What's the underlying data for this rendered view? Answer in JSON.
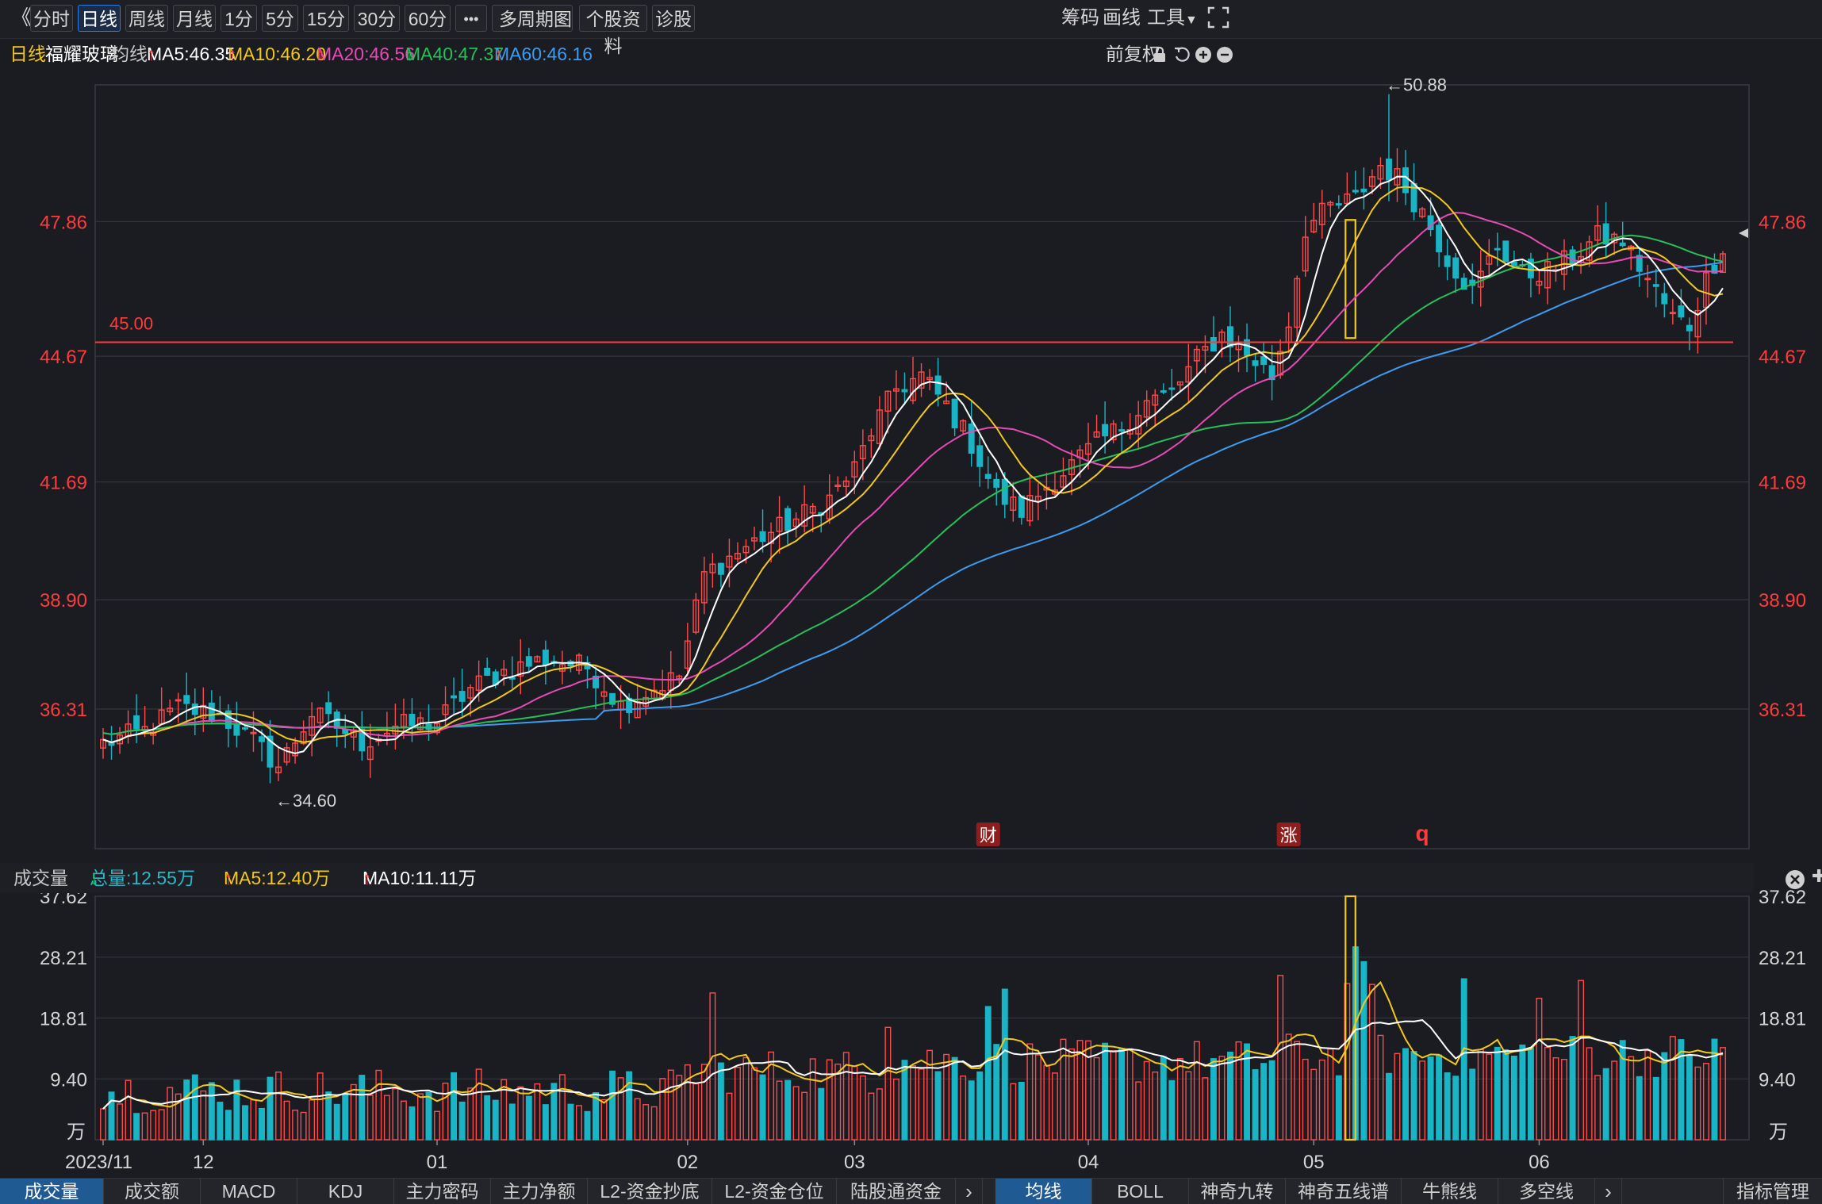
{
  "toolbar": {
    "back_glyph": "《",
    "periods": [
      "分时",
      "日线",
      "周线",
      "月线",
      "1分",
      "5分",
      "15分",
      "30分",
      "60分"
    ],
    "active_period": "日线",
    "more_label": "•••",
    "multi_period_label": "多周期图",
    "stock_info_label": "个股资料",
    "diagnose_label": "诊股",
    "chips_label": "筹码",
    "draw_label": "画线",
    "tools_label": "工具"
  },
  "ma_bar": {
    "period_label": "日线",
    "stock_name": "福耀玻璃",
    "ma_title": "均线",
    "items": [
      {
        "label": "MA5:46.35",
        "dir": "up",
        "color": "#ffffff"
      },
      {
        "label": "MA10:46.20",
        "dir": "up",
        "color": "#f2c81a"
      },
      {
        "label": "MA20:46.56",
        "dir": "up",
        "color": "#e64bb4"
      },
      {
        "label": "MA40:47.37",
        "dir": "down",
        "color": "#27c05a"
      },
      {
        "label": "MA60:46.16",
        "dir": "up",
        "color": "#3b9cf2"
      }
    ],
    "adjust_label": "前复权"
  },
  "volume_bar": {
    "title": "成交量",
    "items": [
      {
        "label": "总量:12.55万",
        "dir": "down",
        "color": "#2ab7c9"
      },
      {
        "label": "MA5:12.40万",
        "dir": "up",
        "color": "#f2c81a"
      },
      {
        "label": "MA10:11.11万",
        "dir": "up",
        "color": "#ffffff"
      }
    ]
  },
  "bottom_tabs": {
    "left": [
      "成交量",
      "成交额",
      "MACD",
      "KDJ",
      "主力密码",
      "主力净额",
      "L2-资金抄底",
      "L2-资金仓位",
      "陆股通资金"
    ],
    "left_active": "成交量",
    "right": [
      "均线",
      "BOLL",
      "神奇九转",
      "神奇五线谱",
      "牛熊线",
      "多空线"
    ],
    "right_active": "均线",
    "manage_label": "指标管理"
  },
  "chart_data": {
    "type": "candlestick",
    "price_axis": {
      "ticks": [
        36.31,
        38.9,
        41.69,
        44.67,
        47.86
      ],
      "ylim": [
        33.0,
        51.1
      ]
    },
    "volume_axis": {
      "ticks": [
        "37.62",
        "28.21",
        "18.81",
        "9.40"
      ],
      "unit_label": "万",
      "ylim": [
        0,
        37.62
      ]
    },
    "x_labels": [
      {
        "label": "2023/11",
        "index": 0
      },
      {
        "label": "12",
        "index": 12
      },
      {
        "label": "01",
        "index": 40
      },
      {
        "label": "02",
        "index": 70
      },
      {
        "label": "03",
        "index": 90
      },
      {
        "label": "04",
        "index": 118
      },
      {
        "label": "05",
        "index": 145
      },
      {
        "label": "06",
        "index": 172
      }
    ],
    "horizontal_line": {
      "label": "45.00",
      "value": 45.0
    },
    "annotations": [
      {
        "text": "←50.88",
        "value": 50.88,
        "index": 154
      },
      {
        "text": "←34.60",
        "value": 34.6,
        "index": 21
      }
    ],
    "event_marks": [
      {
        "text": "财",
        "index": 106
      },
      {
        "text": "涨",
        "index": 142
      },
      {
        "text": "q",
        "index": 158
      }
    ],
    "anchors": [
      [
        0,
        35.5
      ],
      [
        5,
        35.8
      ],
      [
        9,
        36.35
      ],
      [
        14,
        36.15
      ],
      [
        18,
        35.55
      ],
      [
        21,
        34.95
      ],
      [
        25,
        36.2
      ],
      [
        28,
        35.9
      ],
      [
        31,
        35.5
      ],
      [
        35,
        35.9
      ],
      [
        40,
        36.0
      ],
      [
        44,
        36.8
      ],
      [
        48,
        37.2
      ],
      [
        53,
        37.5
      ],
      [
        58,
        37.3
      ],
      [
        62,
        36.4
      ],
      [
        66,
        36.8
      ],
      [
        69,
        37.1
      ],
      [
        72,
        39.5
      ],
      [
        75,
        39.9
      ],
      [
        79,
        40.4
      ],
      [
        83,
        40.8
      ],
      [
        87,
        41.3
      ],
      [
        90,
        42.0
      ],
      [
        92,
        42.9
      ],
      [
        95,
        43.9
      ],
      [
        98,
        44.2
      ],
      [
        101,
        43.5
      ],
      [
        104,
        42.6
      ],
      [
        107,
        41.4
      ],
      [
        110,
        41.0
      ],
      [
        113,
        41.6
      ],
      [
        116,
        42.1
      ],
      [
        119,
        42.6
      ],
      [
        122,
        43.0
      ],
      [
        125,
        43.6
      ],
      [
        128,
        43.8
      ],
      [
        131,
        44.6
      ],
      [
        134,
        45.2
      ],
      [
        136,
        44.9
      ],
      [
        140,
        44.2
      ],
      [
        142,
        45.5
      ],
      [
        144,
        47.7
      ],
      [
        147,
        48.2
      ],
      [
        150,
        48.4
      ],
      [
        153,
        49.2
      ],
      [
        155,
        48.9
      ],
      [
        158,
        48.1
      ],
      [
        161,
        47.0
      ],
      [
        164,
        46.2
      ],
      [
        167,
        47.3
      ],
      [
        170,
        46.6
      ],
      [
        173,
        46.7
      ],
      [
        176,
        47.0
      ],
      [
        179,
        47.5
      ],
      [
        182,
        47.4
      ],
      [
        185,
        46.5
      ],
      [
        188,
        45.6
      ],
      [
        190,
        45.4
      ],
      [
        192,
        46.5
      ],
      [
        194,
        47.3
      ]
    ]
  }
}
